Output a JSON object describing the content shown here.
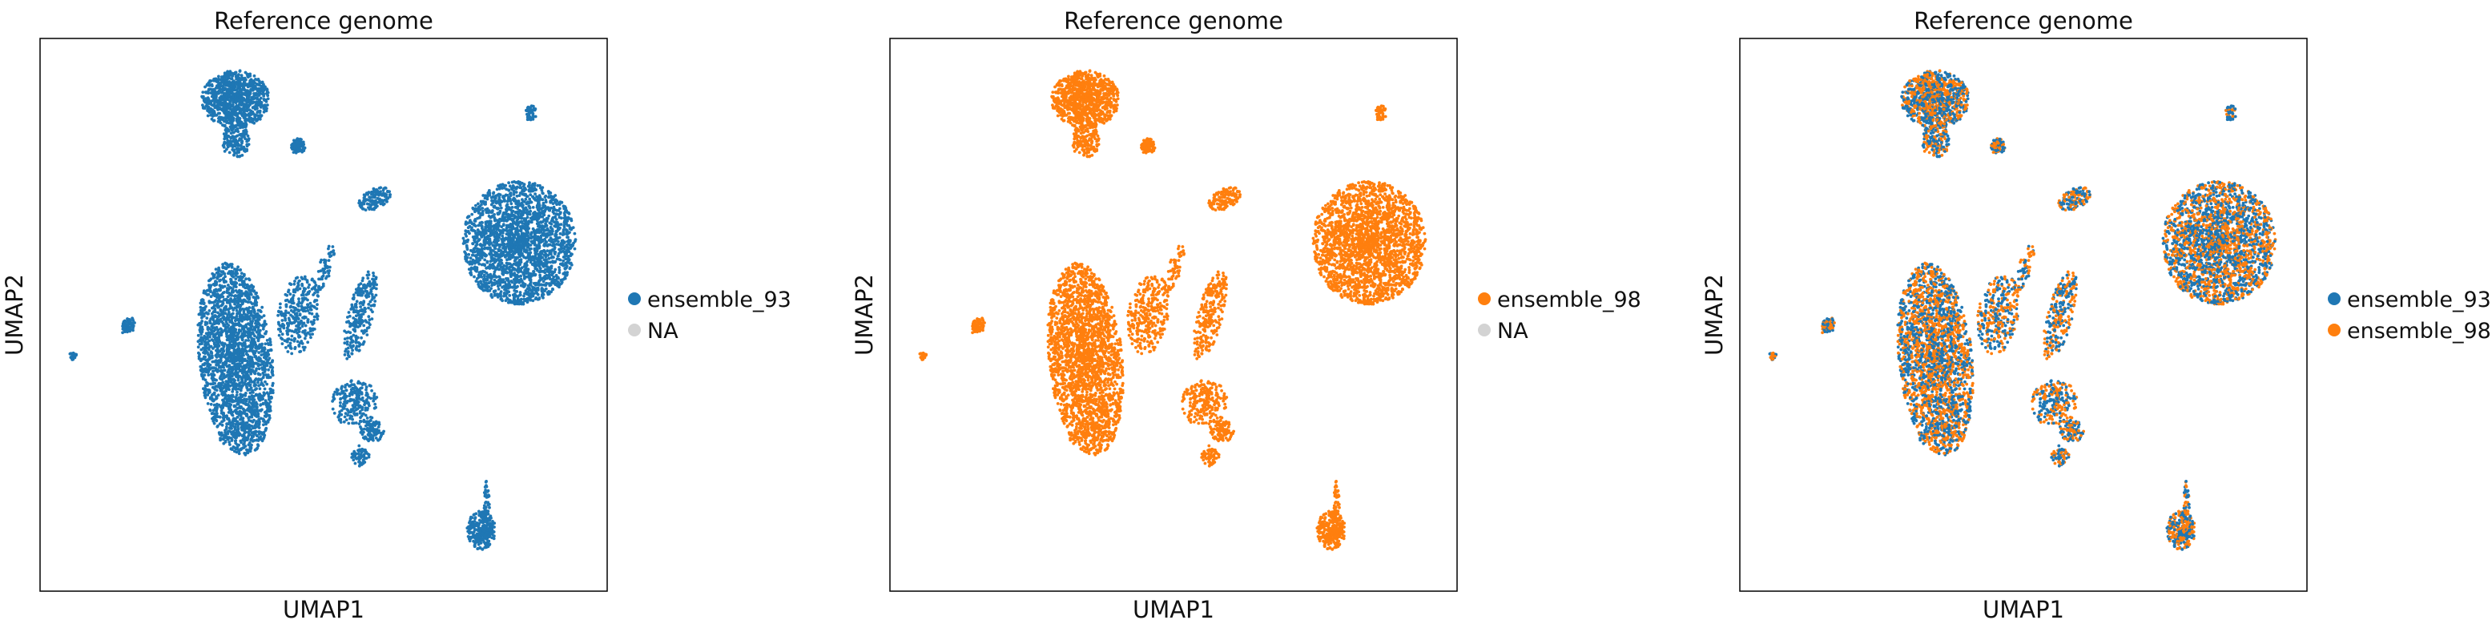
{
  "chart_data": [
    {
      "type": "scatter",
      "title": "Reference genome",
      "xlabel": "UMAP1",
      "ylabel": "UMAP2",
      "legend": [
        {
          "label": "ensemble_93",
          "color": "#1f77b4"
        },
        {
          "label": "NA",
          "color": "#d3d3d3"
        }
      ],
      "series": [
        {
          "name": "ensemble_93",
          "color": "#1f77b4"
        }
      ],
      "legend_placement": "right",
      "grid": false,
      "ticks": false
    },
    {
      "type": "scatter",
      "title": "Reference genome",
      "xlabel": "UMAP1",
      "ylabel": "UMAP2",
      "legend": [
        {
          "label": "ensemble_98",
          "color": "#ff7f0e"
        },
        {
          "label": "NA",
          "color": "#d3d3d3"
        }
      ],
      "series": [
        {
          "name": "ensemble_98",
          "color": "#ff7f0e"
        }
      ],
      "legend_placement": "right",
      "grid": false,
      "ticks": false
    },
    {
      "type": "scatter",
      "title": "Reference genome",
      "xlabel": "UMAP1",
      "ylabel": "UMAP2",
      "legend": [
        {
          "label": "ensemble_93",
          "color": "#1f77b4"
        },
        {
          "label": "ensemble_98",
          "color": "#ff7f0e"
        }
      ],
      "series": [
        {
          "name": "ensemble_93",
          "color": "#1f77b4"
        },
        {
          "name": "ensemble_98",
          "color": "#ff7f0e"
        }
      ],
      "legend_placement": "right",
      "grid": false,
      "ticks": false
    }
  ]
}
